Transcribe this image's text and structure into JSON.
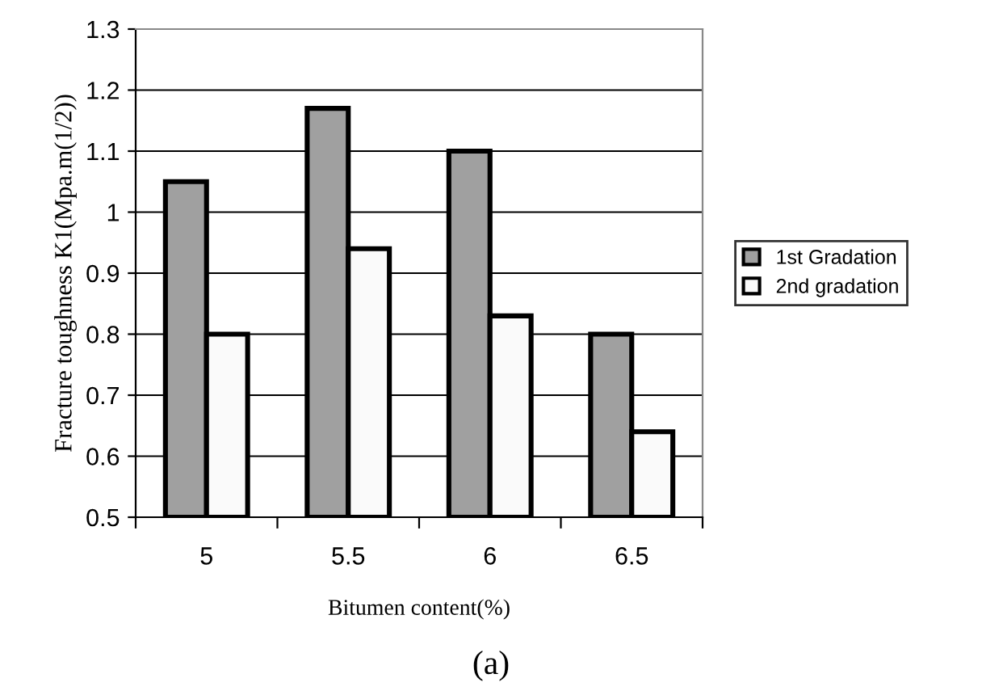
{
  "chart_data": {
    "type": "bar",
    "xlabel": "Bitumen content(%)",
    "ylabel": "Fracture toughness K1(Mpa.m(1/2))",
    "categories": [
      "5",
      "5.5",
      "6",
      "6.5"
    ],
    "series": [
      {
        "name": "1st Gradation",
        "color": "#a0a0a0",
        "values": [
          1.05,
          1.17,
          1.1,
          0.8
        ]
      },
      {
        "name": "2nd gradation",
        "color": "#fafafa",
        "values": [
          0.8,
          0.94,
          0.83,
          0.64
        ]
      }
    ],
    "ylim": [
      0.5,
      1.3
    ],
    "yticks": [
      0.5,
      0.6,
      0.7,
      0.8,
      0.9,
      {
        "value": 1,
        "label": "1"
      },
      1.1,
      1.2,
      1.3
    ],
    "grid": "y",
    "legend": "right",
    "annotations": [
      "(a)"
    ]
  }
}
